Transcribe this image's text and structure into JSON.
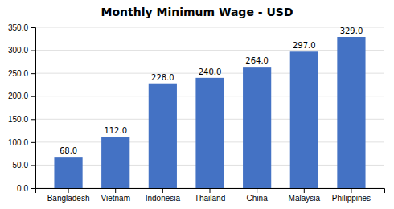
{
  "chart_data": {
    "type": "bar",
    "title": "Monthly Minimum Wage - USD",
    "categories": [
      "Bangladesh",
      "Vietnam",
      "Indonesia",
      "Thailand",
      "China",
      "Malaysia",
      "Philippines"
    ],
    "values": [
      68.0,
      112.0,
      228.0,
      240.0,
      264.0,
      297.0,
      329.0
    ],
    "value_labels": [
      "68.0",
      "112.0",
      "228.0",
      "240.0",
      "264.0",
      "297.0",
      "329.0"
    ],
    "data_labels": true,
    "color": "#4472C4",
    "ylim": [
      0,
      350
    ],
    "yticks": [
      {
        "value": 0,
        "label": "0.0"
      },
      {
        "value": 50,
        "label": "50.0"
      },
      {
        "value": 100,
        "label": "100.0"
      },
      {
        "value": 150,
        "label": "150.0"
      },
      {
        "value": 200,
        "label": "200.0"
      },
      {
        "value": 250,
        "label": "250.0"
      },
      {
        "value": 300,
        "label": "300.0"
      },
      {
        "value": 350,
        "label": "350.0"
      }
    ],
    "grid": true
  }
}
